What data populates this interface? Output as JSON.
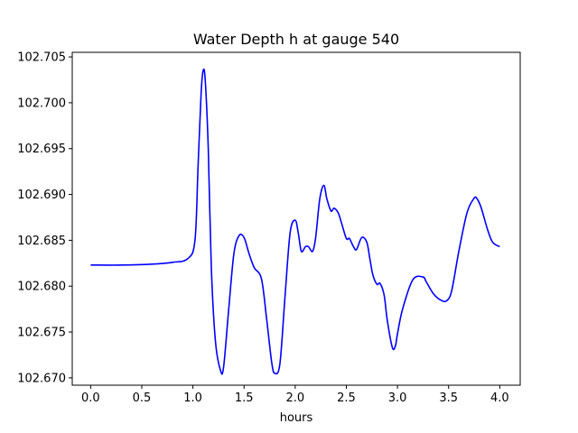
{
  "chart_data": {
    "type": "line",
    "title": "Water Depth h at gauge 540",
    "xlabel": "hours",
    "ylabel": "",
    "xlim": [
      -0.18,
      4.2
    ],
    "ylim": [
      102.6692,
      102.7055
    ],
    "x_ticks": [
      0.0,
      0.5,
      1.0,
      1.5,
      2.0,
      2.5,
      3.0,
      3.5,
      4.0
    ],
    "x_tick_labels": [
      "0.0",
      "0.5",
      "1.0",
      "1.5",
      "2.0",
      "2.5",
      "3.0",
      "3.5",
      "4.0"
    ],
    "y_ticks": [
      102.67,
      102.675,
      102.68,
      102.685,
      102.69,
      102.695,
      102.7,
      102.705
    ],
    "y_tick_labels": [
      "102.670",
      "102.675",
      "102.680",
      "102.685",
      "102.690",
      "102.695",
      "102.700",
      "102.705"
    ],
    "grid": false,
    "series": [
      {
        "color": "#0000ff",
        "x": [
          0.0,
          0.3,
          0.6,
          0.8,
          0.95,
          1.02,
          1.05,
          1.08,
          1.1,
          1.12,
          1.15,
          1.18,
          1.22,
          1.27,
          1.3,
          1.35,
          1.4,
          1.45,
          1.5,
          1.55,
          1.6,
          1.67,
          1.72,
          1.77,
          1.8,
          1.85,
          1.9,
          1.95,
          2.0,
          2.03,
          2.06,
          2.1,
          2.13,
          2.17,
          2.2,
          2.24,
          2.28,
          2.31,
          2.35,
          2.38,
          2.42,
          2.45,
          2.5,
          2.53,
          2.57,
          2.6,
          2.65,
          2.7,
          2.73,
          2.76,
          2.8,
          2.83,
          2.87,
          2.9,
          2.95,
          2.98,
          3.0,
          3.05,
          3.15,
          3.25,
          3.28,
          3.35,
          3.42,
          3.48,
          3.53,
          3.6,
          3.68,
          3.75,
          3.78,
          3.82,
          3.88,
          3.93,
          4.0
        ],
        "y": [
          102.6823,
          102.6823,
          102.6824,
          102.6826,
          102.683,
          102.685,
          102.693,
          102.701,
          102.7035,
          102.7025,
          102.695,
          102.682,
          102.674,
          102.6708,
          102.6712,
          102.6775,
          102.6835,
          102.6855,
          102.6853,
          102.6835,
          102.682,
          102.6808,
          102.6765,
          102.6717,
          102.6705,
          102.6715,
          102.6788,
          102.6858,
          102.6872,
          102.6858,
          102.6838,
          102.6843,
          102.6843,
          102.6838,
          102.6853,
          102.6895,
          102.691,
          102.6895,
          102.6882,
          102.6885,
          102.688,
          102.687,
          102.6852,
          102.6852,
          102.6843,
          102.684,
          102.6853,
          102.6848,
          102.683,
          102.6812,
          102.6802,
          102.6803,
          102.679,
          102.6763,
          102.6733,
          102.6735,
          102.6748,
          102.6775,
          102.6807,
          102.681,
          102.6805,
          102.6792,
          102.6785,
          102.6784,
          102.6795,
          102.6838,
          102.688,
          102.6896,
          102.6895,
          102.6885,
          102.6862,
          102.6848,
          102.6843
        ]
      }
    ]
  }
}
